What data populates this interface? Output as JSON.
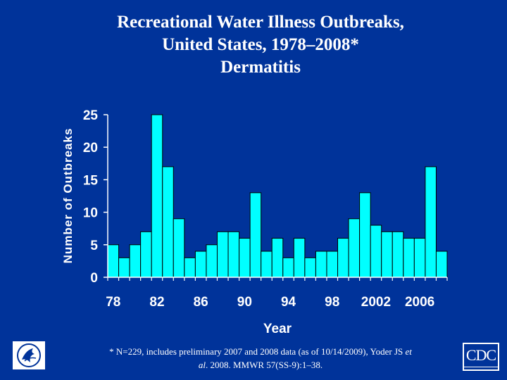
{
  "chart_data": {
    "type": "bar",
    "title_lines": [
      "Recreational Water Illness Outbreaks,",
      "United States, 1978–2008*",
      "Dermatitis"
    ],
    "xlabel": "Year",
    "ylabel": "Number of Outbreaks",
    "ylim": [
      0,
      25
    ],
    "yticks": [
      0,
      5,
      10,
      15,
      20,
      25
    ],
    "categories": [
      1978,
      1979,
      1980,
      1981,
      1982,
      1983,
      1984,
      1985,
      1986,
      1987,
      1988,
      1989,
      1990,
      1991,
      1992,
      1993,
      1994,
      1995,
      1996,
      1997,
      1998,
      1999,
      2000,
      2001,
      2002,
      2003,
      2004,
      2005,
      2006,
      2007,
      2008
    ],
    "values": [
      5,
      3,
      5,
      7,
      25,
      17,
      9,
      3,
      4,
      5,
      7,
      7,
      6,
      13,
      4,
      6,
      3,
      6,
      3,
      4,
      4,
      6,
      9,
      13,
      8,
      7,
      7,
      6,
      6,
      17,
      4
    ],
    "xtick_labels": [
      {
        "index": 0,
        "label": "78"
      },
      {
        "index": 4,
        "label": "82"
      },
      {
        "index": 8,
        "label": "86"
      },
      {
        "index": 12,
        "label": "90"
      },
      {
        "index": 16,
        "label": "94"
      },
      {
        "index": 20,
        "label": "98"
      },
      {
        "index": 24,
        "label": "2002"
      },
      {
        "index": 28,
        "label": "2006"
      }
    ],
    "colors": {
      "bar": "#00ffff",
      "bar_edge": "#000000",
      "axis": "#ffffff",
      "text": "#ffffff"
    }
  },
  "footnote": {
    "main": "* N=229, includes preliminary 2007 and 2008 data (as of 10/14/2009), Yoder JS ",
    "et": "et",
    "al": "al",
    "rest": ". 2008. MMWR 57(SS-9):1–38."
  },
  "logos": {
    "hhs_icon": "hhs-eagle-icon",
    "cdc_text": "CDC"
  }
}
